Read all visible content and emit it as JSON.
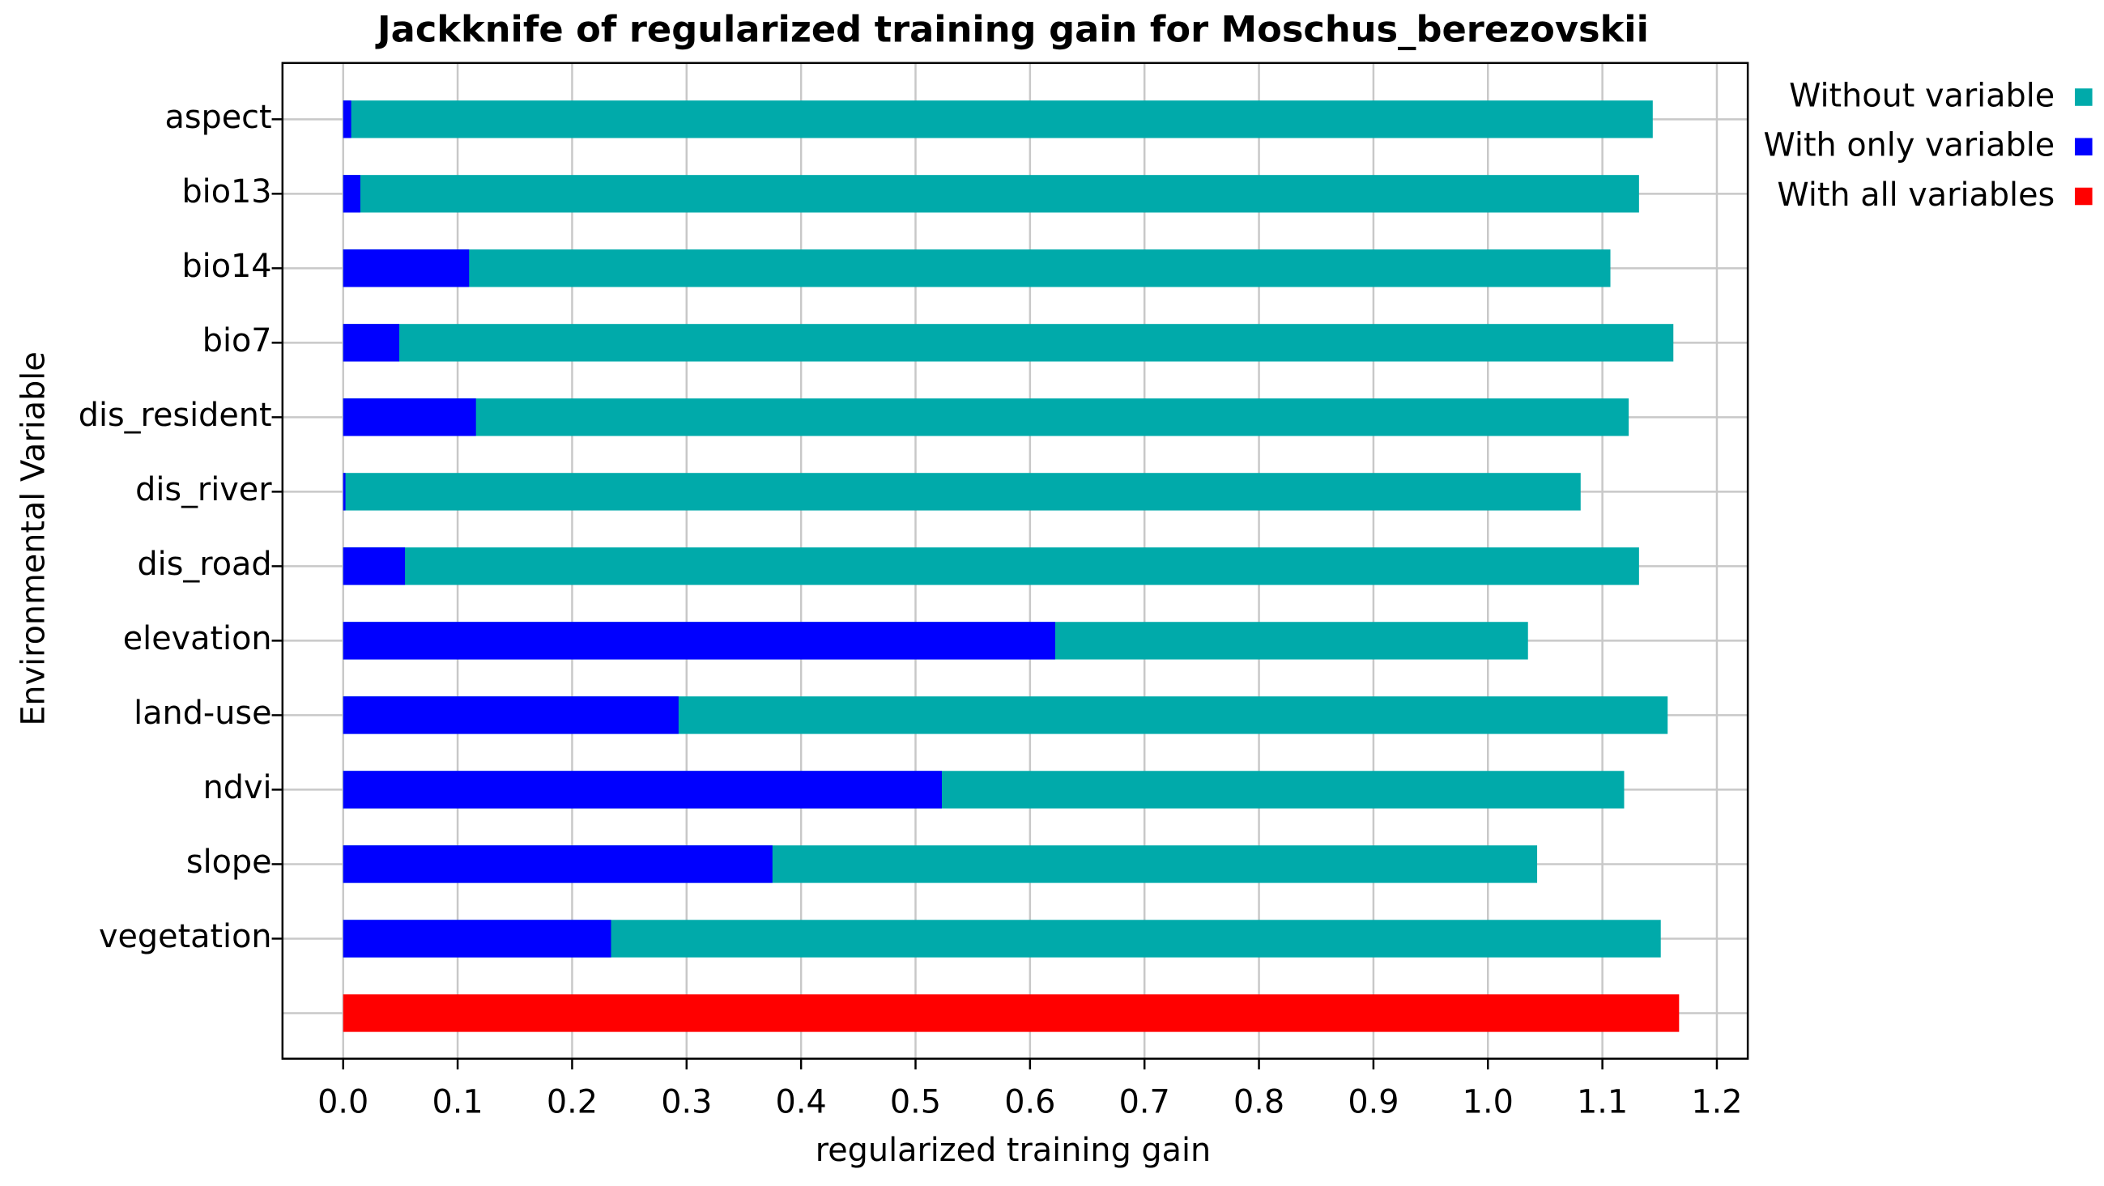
{
  "chart_data": {
    "type": "bar",
    "orientation": "horizontal",
    "title": "Jackknife of regularized training gain for Moschus_berezovskii",
    "xlabel": "regularized training gain",
    "ylabel": "Environmental Variable",
    "categories": [
      "aspect",
      "bio13",
      "bio14",
      "bio7",
      "dis_resident",
      "dis_river",
      "dis_road",
      "elevation",
      "land-use",
      "ndvi",
      "slope",
      "vegetation",
      null
    ],
    "series": [
      {
        "name": "Without variable",
        "color": "#00aaaa",
        "values": [
          1.144,
          1.132,
          1.107,
          1.162,
          1.123,
          1.081,
          1.132,
          1.035,
          1.157,
          1.119,
          1.043,
          1.151,
          null
        ]
      },
      {
        "name": "With only variable",
        "color": "#0000ff",
        "values": [
          0.007,
          0.015,
          0.11,
          0.049,
          0.116,
          0.002,
          0.054,
          0.622,
          0.293,
          0.523,
          0.375,
          0.234,
          null
        ]
      },
      {
        "name": "With all variables",
        "color": "#ff0000",
        "values": [
          null,
          null,
          null,
          null,
          null,
          null,
          null,
          null,
          null,
          null,
          null,
          null,
          1.167
        ]
      }
    ],
    "xlim": [
      -0.053,
      1.227
    ],
    "xticks": [
      {
        "value": 0,
        "label": "0.0"
      },
      0.1,
      0.2,
      0.3,
      0.4,
      0.5,
      0.6,
      0.7,
      0.8,
      0.9,
      {
        "value": 1,
        "label": "1.0"
      },
      1.1,
      1.2
    ],
    "grid": true,
    "legend": "outside-right"
  }
}
